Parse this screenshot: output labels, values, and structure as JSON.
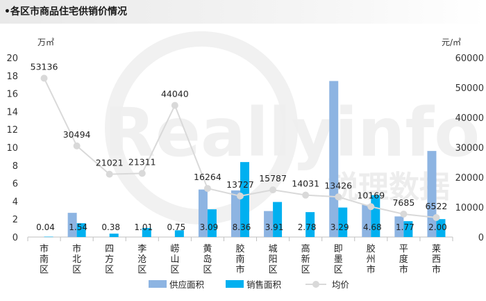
{
  "header": {
    "title": "•各区市商品住宅供销价情况"
  },
  "watermark": {
    "text": "Reallyinfo",
    "cn": "锐理数据"
  },
  "chart_data": {
    "type": "bar",
    "categories": [
      "市南区",
      "市北区",
      "四方区",
      "李沧区",
      "崂山区",
      "黄岛区",
      "胶南市",
      "城阳区",
      "高新区",
      "即墨区",
      "胶州市",
      "平度市",
      "莱西市"
    ],
    "y_left_unit": "万㎡",
    "y_right_unit": "元/㎡",
    "ylim_left": [
      0,
      20
    ],
    "ylim_right": [
      0,
      60000
    ],
    "yticks_left": [
      0,
      2,
      4,
      6,
      8,
      10,
      12,
      14,
      16,
      18,
      20
    ],
    "yticks_right": [
      0,
      10000,
      20000,
      30000,
      40000,
      50000,
      60000
    ],
    "grid": false,
    "legend_position": "bottom",
    "series": [
      {
        "name": "供应面积",
        "type": "bar",
        "axis": "left",
        "color": "#8db4e2",
        "values": [
          0,
          2.7,
          0,
          0,
          0,
          5.3,
          5.2,
          2.9,
          0,
          17.4,
          3.6,
          2.3,
          9.6
        ],
        "labels": []
      },
      {
        "name": "销售面积",
        "type": "bar",
        "axis": "left",
        "color": "#00b0f0",
        "values": [
          0.04,
          1.54,
          0.38,
          1.01,
          0.75,
          3.09,
          8.36,
          3.91,
          2.78,
          3.29,
          4.68,
          1.77,
          2.0
        ],
        "labels": [
          "0.04",
          "1.54",
          "0.38",
          "1.01",
          "0.75",
          "3.09",
          "8.36",
          "3.91",
          "2.78",
          "3.29",
          "4.68",
          "1.77",
          "2.00"
        ]
      },
      {
        "name": "均价",
        "type": "line",
        "axis": "right",
        "color": "#d9d9d9",
        "values": [
          53136,
          30494,
          21021,
          21311,
          44040,
          16264,
          13727,
          15787,
          14031,
          13426,
          10169,
          7685,
          6522
        ],
        "labels": [
          "53136",
          "30494",
          "21021",
          "21311",
          "44040",
          "16264",
          "13727",
          "15787",
          "14031",
          "13426",
          "10169",
          "7685",
          "6522"
        ]
      }
    ]
  }
}
